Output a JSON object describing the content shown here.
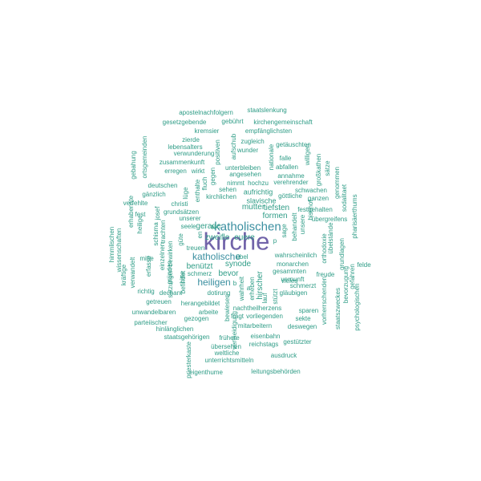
{
  "colors": {
    "primary": "#7163a9",
    "secondary": "#3b8fa0",
    "tertiary": "#2e9c86",
    "background": "#ffffff"
  },
  "words": [
    {
      "text": "kirche",
      "tier": 1
    },
    {
      "text": "katholischen",
      "tier": 2
    },
    {
      "text": "katholische",
      "tier": 3
    },
    {
      "text": "heiligen",
      "tier": 3
    },
    {
      "text": "zweifle",
      "tier": 3
    },
    {
      "text": "euere",
      "tier": 3
    },
    {
      "text": "synode",
      "tier": 3
    },
    {
      "text": "benützt",
      "tier": 3
    },
    {
      "text": "formen",
      "tier": 3
    },
    {
      "text": "gerade",
      "tier": 3
    },
    {
      "text": "mutter",
      "tier": 3
    },
    {
      "text": "tiefsten",
      "tier": 3
    },
    {
      "text": "bevor",
      "tier": 3
    },
    {
      "text": "aufrichtig",
      "tier": 3
    },
    {
      "text": "slavische",
      "tier": 3
    },
    {
      "text": "hirscher",
      "tier": 3
    },
    {
      "text": "apostelnachfolgern",
      "tier": 4
    },
    {
      "text": "staatslenkung",
      "tier": 4
    },
    {
      "text": "gesetzgebende",
      "tier": 4
    },
    {
      "text": "gebührt",
      "tier": 4
    },
    {
      "text": "kirchengemeinschaft",
      "tier": 4
    },
    {
      "text": "kremsier",
      "tier": 4
    },
    {
      "text": "empfänglichsten",
      "tier": 4
    },
    {
      "text": "zierde",
      "tier": 4
    },
    {
      "text": "zugleich",
      "tier": 4
    },
    {
      "text": "lebensalters",
      "tier": 4
    },
    {
      "text": "getäuschten",
      "tier": 4
    },
    {
      "text": "wunder",
      "tier": 4
    },
    {
      "text": "verwunderung",
      "tier": 4
    },
    {
      "text": "falle",
      "tier": 4
    },
    {
      "text": "zusammenkunft",
      "tier": 4
    },
    {
      "text": "abfallen",
      "tier": 4
    },
    {
      "text": "unterbleiben",
      "tier": 4
    },
    {
      "text": "erregen",
      "tier": 4
    },
    {
      "text": "wirkt",
      "tier": 4
    },
    {
      "text": "angesehen",
      "tier": 4
    },
    {
      "text": "annahme",
      "tier": 4
    },
    {
      "text": "nimmt",
      "tier": 4
    },
    {
      "text": "hochzu",
      "tier": 4
    },
    {
      "text": "verehrender",
      "tier": 4
    },
    {
      "text": "deutschen",
      "tier": 4
    },
    {
      "text": "sehen",
      "tier": 4
    },
    {
      "text": "schwachen",
      "tier": 4
    },
    {
      "text": "gänzlich",
      "tier": 4
    },
    {
      "text": "göttliche",
      "tier": 4
    },
    {
      "text": "ganzen",
      "tier": 4
    },
    {
      "text": "kirchlichen",
      "tier": 4
    },
    {
      "text": "verfehlte",
      "tier": 4
    },
    {
      "text": "christi",
      "tier": 4
    },
    {
      "text": "festgehalten",
      "tier": 4
    },
    {
      "text": "fest",
      "tier": 4
    },
    {
      "text": "grundsätzen",
      "tier": 4
    },
    {
      "text": "unserer",
      "tier": 4
    },
    {
      "text": "übergreifens",
      "tier": 4
    },
    {
      "text": "seele",
      "tier": 4
    },
    {
      "text": "treuen",
      "tier": 4
    },
    {
      "text": "mitte",
      "tier": 4
    },
    {
      "text": "wahrscheinlich",
      "tier": 4
    },
    {
      "text": "übel",
      "tier": 4
    },
    {
      "text": "monarchen",
      "tier": 4
    },
    {
      "text": "felde",
      "tier": 4
    },
    {
      "text": "gesammten",
      "tier": 4
    },
    {
      "text": "freude",
      "tier": 4
    },
    {
      "text": "schmerz",
      "tier": 4
    },
    {
      "text": "vernunft",
      "tier": 4
    },
    {
      "text": "vieles",
      "tier": 4
    },
    {
      "text": "schmerzt",
      "tier": 4
    },
    {
      "text": "dechant",
      "tier": 4
    },
    {
      "text": "dotirung",
      "tier": 4
    },
    {
      "text": "gläubigen",
      "tier": 4
    },
    {
      "text": "richtig",
      "tier": 4
    },
    {
      "text": "getreuen",
      "tier": 4
    },
    {
      "text": "herangebildet",
      "tier": 4
    },
    {
      "text": "nachtheilherzens",
      "tier": 4
    },
    {
      "text": "sparen",
      "tier": 4
    },
    {
      "text": "unwandelbaren",
      "tier": 4
    },
    {
      "text": "arbeite",
      "tier": 4
    },
    {
      "text": "fragt",
      "tier": 4
    },
    {
      "text": "vorliegenden",
      "tier": 4
    },
    {
      "text": "sekte",
      "tier": 4
    },
    {
      "text": "gezogen",
      "tier": 4
    },
    {
      "text": "deswegen",
      "tier": 4
    },
    {
      "text": "parteiischer",
      "tier": 4
    },
    {
      "text": "mitarbeitern",
      "tier": 4
    },
    {
      "text": "hinlänglichen",
      "tier": 4
    },
    {
      "text": "staatsgehörigen",
      "tier": 4
    },
    {
      "text": "frühere",
      "tier": 4
    },
    {
      "text": "eisenbahn",
      "tier": 4
    },
    {
      "text": "reichstags",
      "tier": 4
    },
    {
      "text": "gestützter",
      "tier": 4
    },
    {
      "text": "übersehen",
      "tier": 4
    },
    {
      "text": "weltliche",
      "tier": 4
    },
    {
      "text": "ausdruck",
      "tier": 4
    },
    {
      "text": "unterrichtsmitteln",
      "tier": 4
    },
    {
      "text": "eigenthume",
      "tier": 4
    },
    {
      "text": "leitungsbehörden",
      "tier": 4
    },
    {
      "text": "positiven",
      "tier": 4
    },
    {
      "text": "aufschub",
      "tier": 4
    },
    {
      "text": "nationale",
      "tier": 4
    },
    {
      "text": "willigen",
      "tier": 4
    },
    {
      "text": "großkathen",
      "tier": 4
    },
    {
      "text": "sätze",
      "tier": 4
    },
    {
      "text": "gebahung",
      "tier": 4
    },
    {
      "text": "ortsgemeinden",
      "tier": 4
    },
    {
      "text": "lüge",
      "tier": 4
    },
    {
      "text": "enthalte",
      "tier": 4
    },
    {
      "text": "fluch",
      "tier": 4
    },
    {
      "text": "gegen",
      "tier": 4
    },
    {
      "text": "genommen",
      "tier": 4
    },
    {
      "text": "erhabenste",
      "tier": 4
    },
    {
      "text": "heilige",
      "tier": 4
    },
    {
      "text": "josef",
      "tier": 4
    },
    {
      "text": "sodalitaet",
      "tier": 4
    },
    {
      "text": "pharisäerthums",
      "tier": 4
    },
    {
      "text": "bischof",
      "tier": 4
    },
    {
      "text": "unsere",
      "tier": 4
    },
    {
      "text": "behandelt",
      "tier": 4
    },
    {
      "text": "sage",
      "tier": 4
    },
    {
      "text": "himmlischen",
      "tier": 4
    },
    {
      "text": "wissenschaften",
      "tier": 4
    },
    {
      "text": "schisma",
      "tier": 4
    },
    {
      "text": "trachten",
      "tier": 4
    },
    {
      "text": "güte",
      "tier": 4
    },
    {
      "text": "erfasse",
      "tier": 4
    },
    {
      "text": "einzelnen",
      "tier": 4
    },
    {
      "text": "gründen",
      "tier": 4
    },
    {
      "text": "verwandelt",
      "tier": 4
    },
    {
      "text": "kräftige",
      "tier": 4
    },
    {
      "text": "satzungen bewirken",
      "tier": 4
    },
    {
      "text": "bitte",
      "tier": 4
    },
    {
      "text": "wahrheit",
      "tier": 4
    },
    {
      "text": "erheben",
      "tier": 4
    },
    {
      "text": "lauf",
      "tier": 4
    },
    {
      "text": "stützt",
      "tier": 4
    },
    {
      "text": "bewiesen",
      "tier": 4
    },
    {
      "text": "orthodoxie",
      "tier": 4
    },
    {
      "text": "übelstände",
      "tier": 4
    },
    {
      "text": "grundlagen",
      "tier": 4
    },
    {
      "text": "vorherrschenden",
      "tier": 4
    },
    {
      "text": "bevorzugung",
      "tier": 4
    },
    {
      "text": "gefahren",
      "tier": 4
    },
    {
      "text": "staatszweckes",
      "tier": 4
    },
    {
      "text": "psychologischen",
      "tier": 4
    },
    {
      "text": "priesterkaste",
      "tier": 4
    },
    {
      "text": "befindet",
      "tier": 4
    },
    {
      "text": "vertheidigung",
      "tier": 4
    },
    {
      "text": "en",
      "tier": 4
    },
    {
      "text": "te",
      "tier": 4
    },
    {
      "text": "b",
      "tier": 4
    },
    {
      "text": "p",
      "tier": 4
    },
    {
      "text": "a",
      "tier": 4
    }
  ]
}
